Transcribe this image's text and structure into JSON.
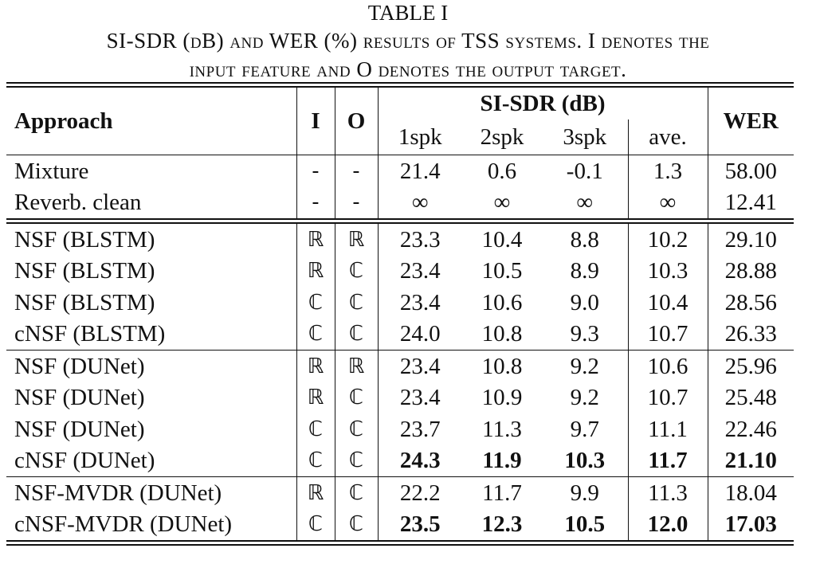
{
  "table_title": "TABLE I",
  "caption": [
    "SI-SDR (dB) and WER (%) results of TSS systems. I denotes the",
    "input feature and O denotes the output target."
  ],
  "table": {
    "header": {
      "approach": "Approach",
      "i": "I",
      "o": "O",
      "sisdr": "SI-SDR (dB)",
      "subcols": [
        "1spk",
        "2spk",
        "3spk",
        "ave."
      ],
      "wer": "WER"
    },
    "groups": [
      [
        [
          "Mixture",
          "-",
          "-",
          "21.4",
          "0.6",
          "-0.1",
          "1.3",
          "58.00"
        ],
        [
          "Reverb. clean",
          "-",
          "-",
          "∞",
          "∞",
          "∞",
          "∞",
          "12.41"
        ]
      ],
      [
        [
          "NSF (BLSTM)",
          "ℝ",
          "ℝ",
          "23.3",
          "10.4",
          "8.8",
          "10.2",
          "29.10"
        ],
        [
          "NSF (BLSTM)",
          "ℝ",
          "ℂ",
          "23.4",
          "10.5",
          "8.9",
          "10.3",
          "28.88"
        ],
        [
          "NSF (BLSTM)",
          "ℂ",
          "ℂ",
          "23.4",
          "10.6",
          "9.0",
          "10.4",
          "28.56"
        ],
        [
          "cNSF (BLSTM)",
          "ℂ",
          "ℂ",
          "24.0",
          "10.8",
          "9.3",
          "10.7",
          "26.33"
        ]
      ],
      [
        [
          "NSF (DUNet)",
          "ℝ",
          "ℝ",
          "23.4",
          "10.8",
          "9.2",
          "10.6",
          "25.96"
        ],
        [
          "NSF (DUNet)",
          "ℝ",
          "ℂ",
          "23.4",
          "10.9",
          "9.2",
          "10.7",
          "25.48"
        ],
        [
          "NSF (DUNet)",
          "ℂ",
          "ℂ",
          "23.7",
          "11.3",
          "9.7",
          "11.1",
          "22.46"
        ],
        [
          "cNSF (DUNet)",
          "ℂ",
          "ℂ",
          "24.3",
          "11.9",
          "10.3",
          "11.7",
          "21.10"
        ]
      ],
      [
        [
          "NSF-MVDR (DUNet)",
          "ℝ",
          "ℂ",
          "22.2",
          "11.7",
          "9.9",
          "11.3",
          "18.04"
        ],
        [
          "cNSF-MVDR (DUNet)",
          "ℂ",
          "ℂ",
          "23.5",
          "12.3",
          "10.5",
          "12.0",
          "17.03"
        ]
      ]
    ]
  }
}
